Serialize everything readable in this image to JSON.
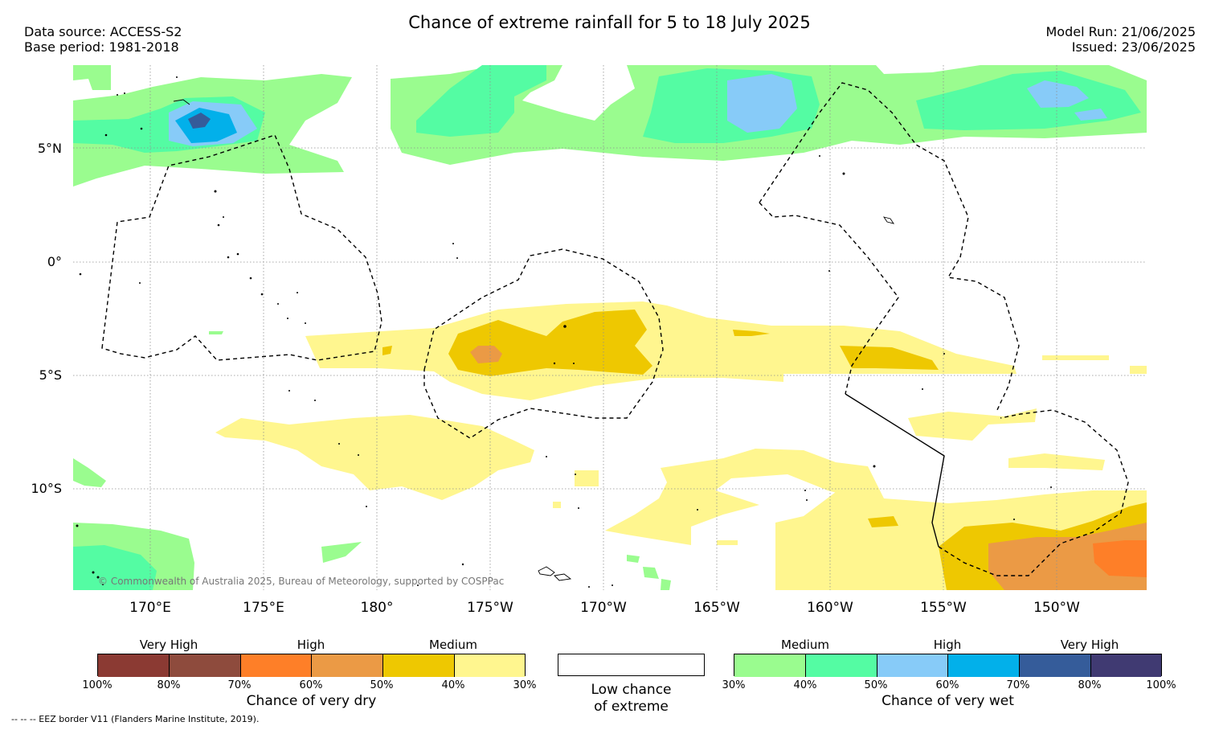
{
  "header": {
    "title": "Chance of extreme rainfall for 5 to 18 July 2025",
    "data_source": "Data source: ACCESS-S2",
    "base_period": "Base period: 1981-2018",
    "model_run": "Model Run: 21/06/2025",
    "issued": "Issued: 23/06/2025"
  },
  "map": {
    "lat_labels": [
      "5°N",
      "0°",
      "5°S",
      "10°S"
    ],
    "lon_labels": [
      "170°E",
      "175°E",
      "180°",
      "175°W",
      "170°W",
      "165°W",
      "160°W",
      "155°W",
      "150°W"
    ],
    "copyright": "© Commonwealth of Australia 2025, Bureau of Meteorology, supported by COSPPac"
  },
  "legend_dry": {
    "categories": [
      "Very High",
      "High",
      "Medium"
    ],
    "ticks": [
      "100%",
      "80%",
      "70%",
      "60%",
      "50%",
      "40%",
      "30%"
    ],
    "label": "Chance of very dry",
    "colors": [
      "#8b3a33",
      "#8e4b3d",
      "#fe7f28",
      "#eb9a45",
      "#eec801",
      "#fff68f"
    ]
  },
  "legend_low": {
    "label_1": "Low chance",
    "label_2": "of extreme",
    "color": "#ffffff"
  },
  "legend_wet": {
    "categories": [
      "Medium",
      "High",
      "Very High"
    ],
    "ticks": [
      "30%",
      "40%",
      "50%",
      "60%",
      "70%",
      "80%",
      "100%"
    ],
    "label": "Chance of very wet",
    "colors": [
      "#9afc8f",
      "#54fca3",
      "#87cbf8",
      "#02b0ea",
      "#355c9a",
      "#403a72"
    ]
  },
  "footnote": "-- -- -- EEZ border V11 (Flanders Marine Institute, 2019)."
}
